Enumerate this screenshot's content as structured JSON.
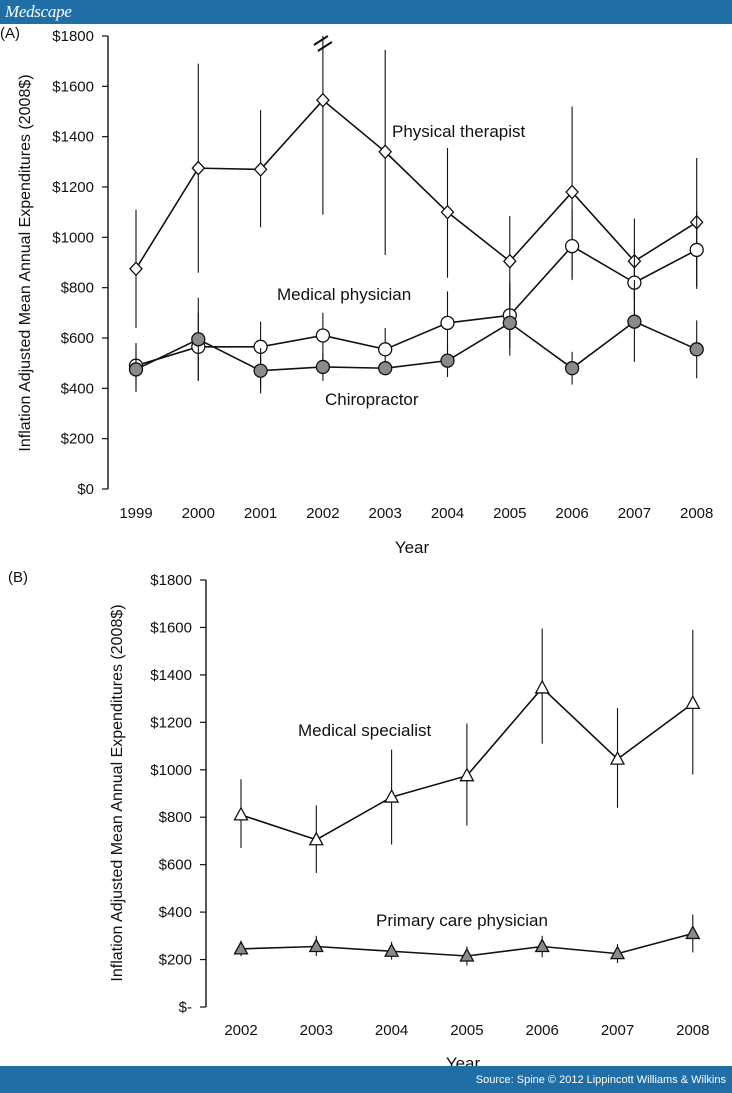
{
  "header": {
    "brand": "Medscape"
  },
  "footer": {
    "source": "Source: Spine © 2012 Lippincott Williams & Wilkins"
  },
  "colors": {
    "bar": "#1f6fa6",
    "marker_dark": "#8a8a8a",
    "marker_light": "#ffffff",
    "line": "#111111"
  },
  "chart_data": [
    {
      "panel_label": "(A)",
      "type": "line",
      "xlabel": "Year",
      "ylabel": "Inflation Adjusted Mean Annual Expenditures (2008$)",
      "categories": [
        "1999",
        "2000",
        "2001",
        "2002",
        "2003",
        "2004",
        "2005",
        "2006",
        "2007",
        "2008"
      ],
      "yticks": [
        "$0",
        "$200",
        "$400",
        "$600",
        "$800",
        "$1000",
        "$1200",
        "$1400",
        "$1600",
        "$1800"
      ],
      "ylim": [
        0,
        1800
      ],
      "grid": false,
      "axis_break_marker": "2002",
      "series": [
        {
          "name": "Physical therapist",
          "marker": "diamond",
          "fill": "white",
          "values": [
            875,
            1275,
            1270,
            1545,
            1340,
            1100,
            905,
            1180,
            905,
            1060
          ],
          "error_low": [
            640,
            860,
            1040,
            1090,
            930,
            840,
            730,
            840,
            745,
            805
          ],
          "error_high": [
            1110,
            1690,
            1505,
            1800,
            1745,
            1355,
            1085,
            1520,
            1075,
            1315
          ]
        },
        {
          "name": "Medical physician",
          "marker": "circle",
          "fill": "white",
          "values": [
            490,
            565,
            565,
            610,
            555,
            660,
            690,
            965,
            820,
            950
          ],
          "error_low": [
            400,
            430,
            400,
            480,
            460,
            545,
            560,
            830,
            680,
            795
          ],
          "error_high": [
            580,
            700,
            665,
            700,
            640,
            785,
            820,
            1110,
            955,
            1105
          ]
        },
        {
          "name": "Chiropractor",
          "marker": "circle",
          "fill": "dark",
          "values": [
            475,
            595,
            470,
            485,
            480,
            510,
            660,
            480,
            665,
            555
          ],
          "error_low": [
            385,
            430,
            380,
            430,
            460,
            445,
            530,
            415,
            505,
            440
          ],
          "error_high": [
            570,
            760,
            560,
            540,
            510,
            575,
            790,
            545,
            830,
            670
          ]
        }
      ]
    },
    {
      "panel_label": "(B)",
      "type": "line",
      "xlabel": "Year",
      "ylabel": "Inflation Adjusted Mean Annual Expenditures (2008$)",
      "categories": [
        "2002",
        "2003",
        "2004",
        "2005",
        "2006",
        "2007",
        "2008"
      ],
      "yticks": [
        "$-",
        "$200",
        "$400",
        "$600",
        "$800",
        "$1000",
        "$1200",
        "$1400",
        "$1600",
        "$1800"
      ],
      "ylim": [
        0,
        1800
      ],
      "grid": false,
      "series": [
        {
          "name": "Medical specialist",
          "marker": "triangle",
          "fill": "white",
          "values": [
            810,
            705,
            885,
            975,
            1345,
            1045,
            1280
          ],
          "error_low": [
            670,
            565,
            685,
            765,
            1110,
            840,
            980
          ],
          "error_high": [
            960,
            850,
            1085,
            1195,
            1595,
            1260,
            1590
          ]
        },
        {
          "name": "Primary care physician",
          "marker": "triangle",
          "fill": "dark",
          "values": [
            245,
            255,
            235,
            215,
            255,
            225,
            310
          ],
          "error_low": [
            215,
            215,
            200,
            175,
            210,
            185,
            230
          ],
          "error_high": [
            280,
            300,
            275,
            255,
            300,
            265,
            390
          ]
        }
      ]
    }
  ]
}
